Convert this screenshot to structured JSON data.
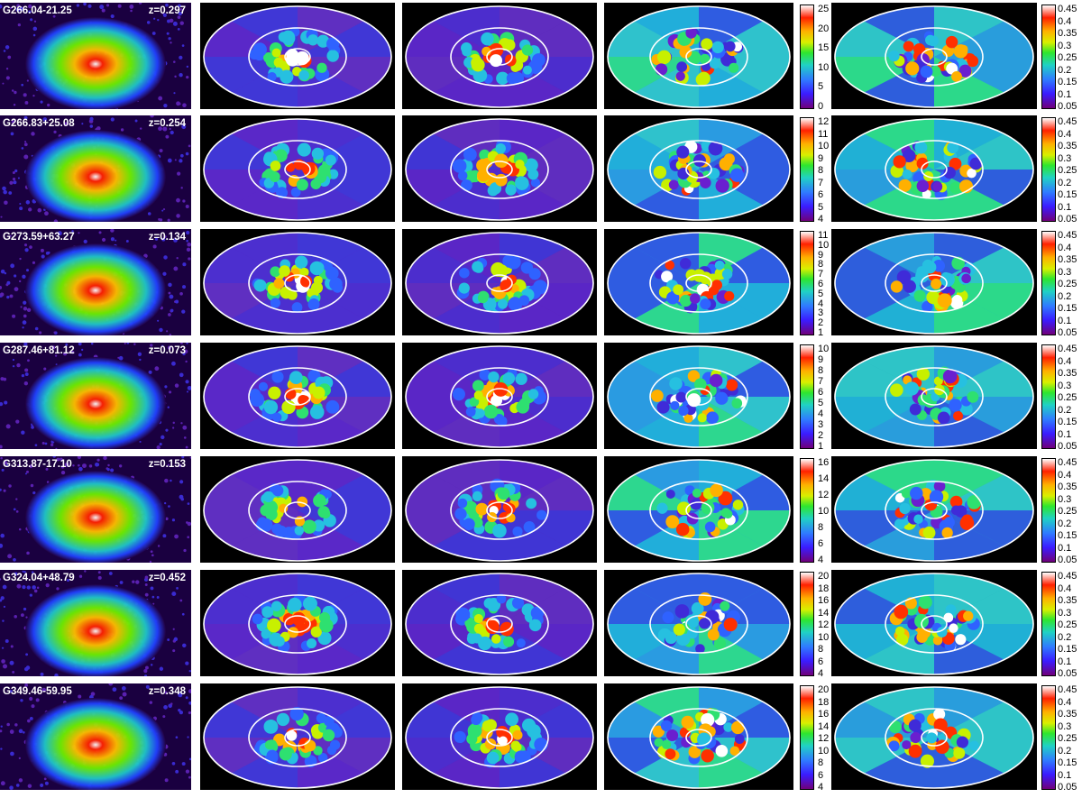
{
  "colors": {
    "grid_bg": "#ffffff",
    "panel_bg": "#000000",
    "contour": "#ffffff"
  },
  "rows": [
    {
      "name": "G266.04-21.25",
      "z": "z=0.297",
      "bar3": [
        "25",
        "20",
        "15",
        "10",
        "5",
        "0"
      ],
      "bar4": [
        "0.45",
        "0.4",
        "0.35",
        "0.3",
        "0.25",
        "0.2",
        "0.15",
        "0.1",
        "0.05"
      ]
    },
    {
      "name": "G266.83+25.08",
      "z": "z=0.254",
      "bar3": [
        "12",
        "11",
        "10",
        "9",
        "8",
        "7",
        "6",
        "5",
        "4"
      ],
      "bar4": [
        "0.45",
        "0.4",
        "0.35",
        "0.3",
        "0.25",
        "0.2",
        "0.15",
        "0.1",
        "0.05"
      ]
    },
    {
      "name": "G273.59+63.27",
      "z": "z=0.134",
      "bar3": [
        "11",
        "10",
        "9",
        "8",
        "7",
        "6",
        "5",
        "4",
        "3",
        "2",
        "1"
      ],
      "bar4": [
        "0.45",
        "0.4",
        "0.35",
        "0.3",
        "0.25",
        "0.2",
        "0.15",
        "0.1",
        "0.05"
      ]
    },
    {
      "name": "G287.46+81.12",
      "z": "z=0.073",
      "bar3": [
        "10",
        "9",
        "8",
        "7",
        "6",
        "5",
        "4",
        "3",
        "2",
        "1"
      ],
      "bar4": [
        "0.45",
        "0.4",
        "0.35",
        "0.3",
        "0.25",
        "0.2",
        "0.15",
        "0.1",
        "0.05"
      ]
    },
    {
      "name": "G313.87-17.10",
      "z": "z=0.153",
      "bar3": [
        "16",
        "14",
        "12",
        "10",
        "8",
        "6",
        "4"
      ],
      "bar4": [
        "0.45",
        "0.4",
        "0.35",
        "0.3",
        "0.25",
        "0.2",
        "0.15",
        "0.1",
        "0.05"
      ]
    },
    {
      "name": "G324.04+48.79",
      "z": "z=0.452",
      "bar3": [
        "20",
        "18",
        "16",
        "14",
        "12",
        "10",
        "8",
        "6",
        "4"
      ],
      "bar4": [
        "0.45",
        "0.4",
        "0.35",
        "0.3",
        "0.25",
        "0.2",
        "0.15",
        "0.1",
        "0.05"
      ]
    },
    {
      "name": "G349.46-59.95",
      "z": "z=0.348",
      "bar3": [
        "20",
        "18",
        "16",
        "14",
        "12",
        "10",
        "8",
        "6",
        "4"
      ],
      "bar4": [
        "0.45",
        "0.4",
        "0.35",
        "0.3",
        "0.25",
        "0.2",
        "0.15",
        "0.1",
        "0.05"
      ]
    }
  ]
}
